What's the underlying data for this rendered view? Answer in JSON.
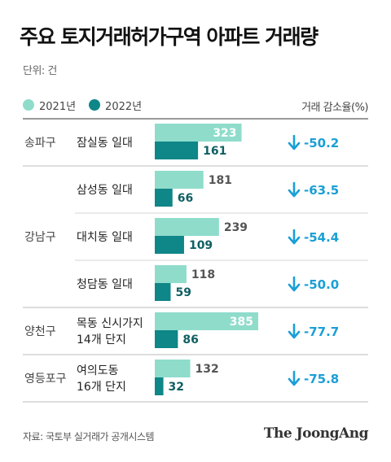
{
  "title": "주요 토지거래허가구역 아파트 거래량",
  "unit_label": "단위: 건",
  "legend": [
    {
      "label": "2021년",
      "color": "#8fdccb"
    },
    {
      "label": "2022년",
      "color": "#0f8688"
    }
  ],
  "change_header": "거래 감소율(%)",
  "colors": {
    "y2021": "#8fdccb",
    "y2022": "#0f8688",
    "change": "#1a9fd6"
  },
  "arrow_icon": "down-arrow-icon",
  "chart_data": {
    "type": "bar",
    "orientation": "horizontal",
    "title": "주요 토지거래허가구역 아파트 거래량",
    "groups": [
      {
        "district": "송파구",
        "areas": [
          {
            "name": [
              "잠실동 일대"
            ],
            "v2021": 323,
            "v2022": 161,
            "change": "-50.2"
          }
        ]
      },
      {
        "district": "강남구",
        "areas": [
          {
            "name": [
              "삼성동 일대"
            ],
            "v2021": 181,
            "v2022": 66,
            "change": "-63.5"
          },
          {
            "name": [
              "대치동 일대"
            ],
            "v2021": 239,
            "v2022": 109,
            "change": "-54.4"
          },
          {
            "name": [
              "청담동 일대"
            ],
            "v2021": 118,
            "v2022": 59,
            "change": "-50.0"
          }
        ]
      },
      {
        "district": "양천구",
        "areas": [
          {
            "name": [
              "목동 신시가지",
              "14개 단지"
            ],
            "v2021": 385,
            "v2022": 86,
            "change": "-77.7"
          }
        ]
      },
      {
        "district": "영등포구",
        "areas": [
          {
            "name": [
              "여의도동",
              "16개 단지"
            ],
            "v2021": 132,
            "v2022": 32,
            "change": "-75.8"
          }
        ]
      }
    ],
    "series": [
      {
        "name": "2021년"
      },
      {
        "name": "2022년"
      }
    ],
    "xlim": [
      0,
      385
    ]
  },
  "source": "자료: 국토부 실거래가 공개시스템",
  "brand": "The JoongAng"
}
